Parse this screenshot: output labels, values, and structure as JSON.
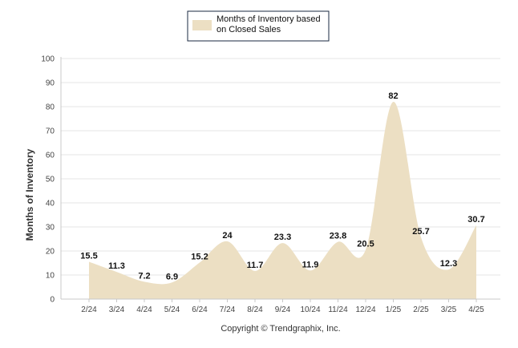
{
  "chart_data": {
    "type": "area",
    "legend": {
      "entries": [
        {
          "name_line1": "Months of Inventory based",
          "name_line2": "on Closed Sales"
        }
      ],
      "placement": "top-center"
    },
    "ylabel": "Months of Inventory",
    "ylim": [
      0,
      100
    ],
    "yticks": [
      "0",
      "10",
      "20",
      "30",
      "40",
      "50",
      "60",
      "70",
      "80",
      "90",
      "100"
    ],
    "categories": [
      "2/24",
      "3/24",
      "4/24",
      "5/24",
      "6/24",
      "7/24",
      "8/24",
      "9/24",
      "10/24",
      "11/24",
      "12/24",
      "1/25",
      "2/25",
      "3/25",
      "4/25"
    ],
    "series": [
      {
        "name": "Months of Inventory based on Closed Sales",
        "color": "#ecdfc3",
        "values": [
          15.5,
          11.3,
          7.2,
          6.9,
          15.2,
          24,
          11.7,
          23.3,
          11.9,
          23.8,
          20.5,
          82,
          25.7,
          12.3,
          30.7
        ]
      }
    ],
    "data_labels": [
      "15.5",
      "11.3",
      "7.2",
      "6.9",
      "15.2",
      "24",
      "11.7",
      "23.3",
      "11.9",
      "23.8",
      "20.5",
      "82",
      "25.7",
      "12.3",
      "30.7"
    ],
    "grid": true
  },
  "footer": {
    "copyright": "Copyright © Trendgraphix, Inc."
  }
}
